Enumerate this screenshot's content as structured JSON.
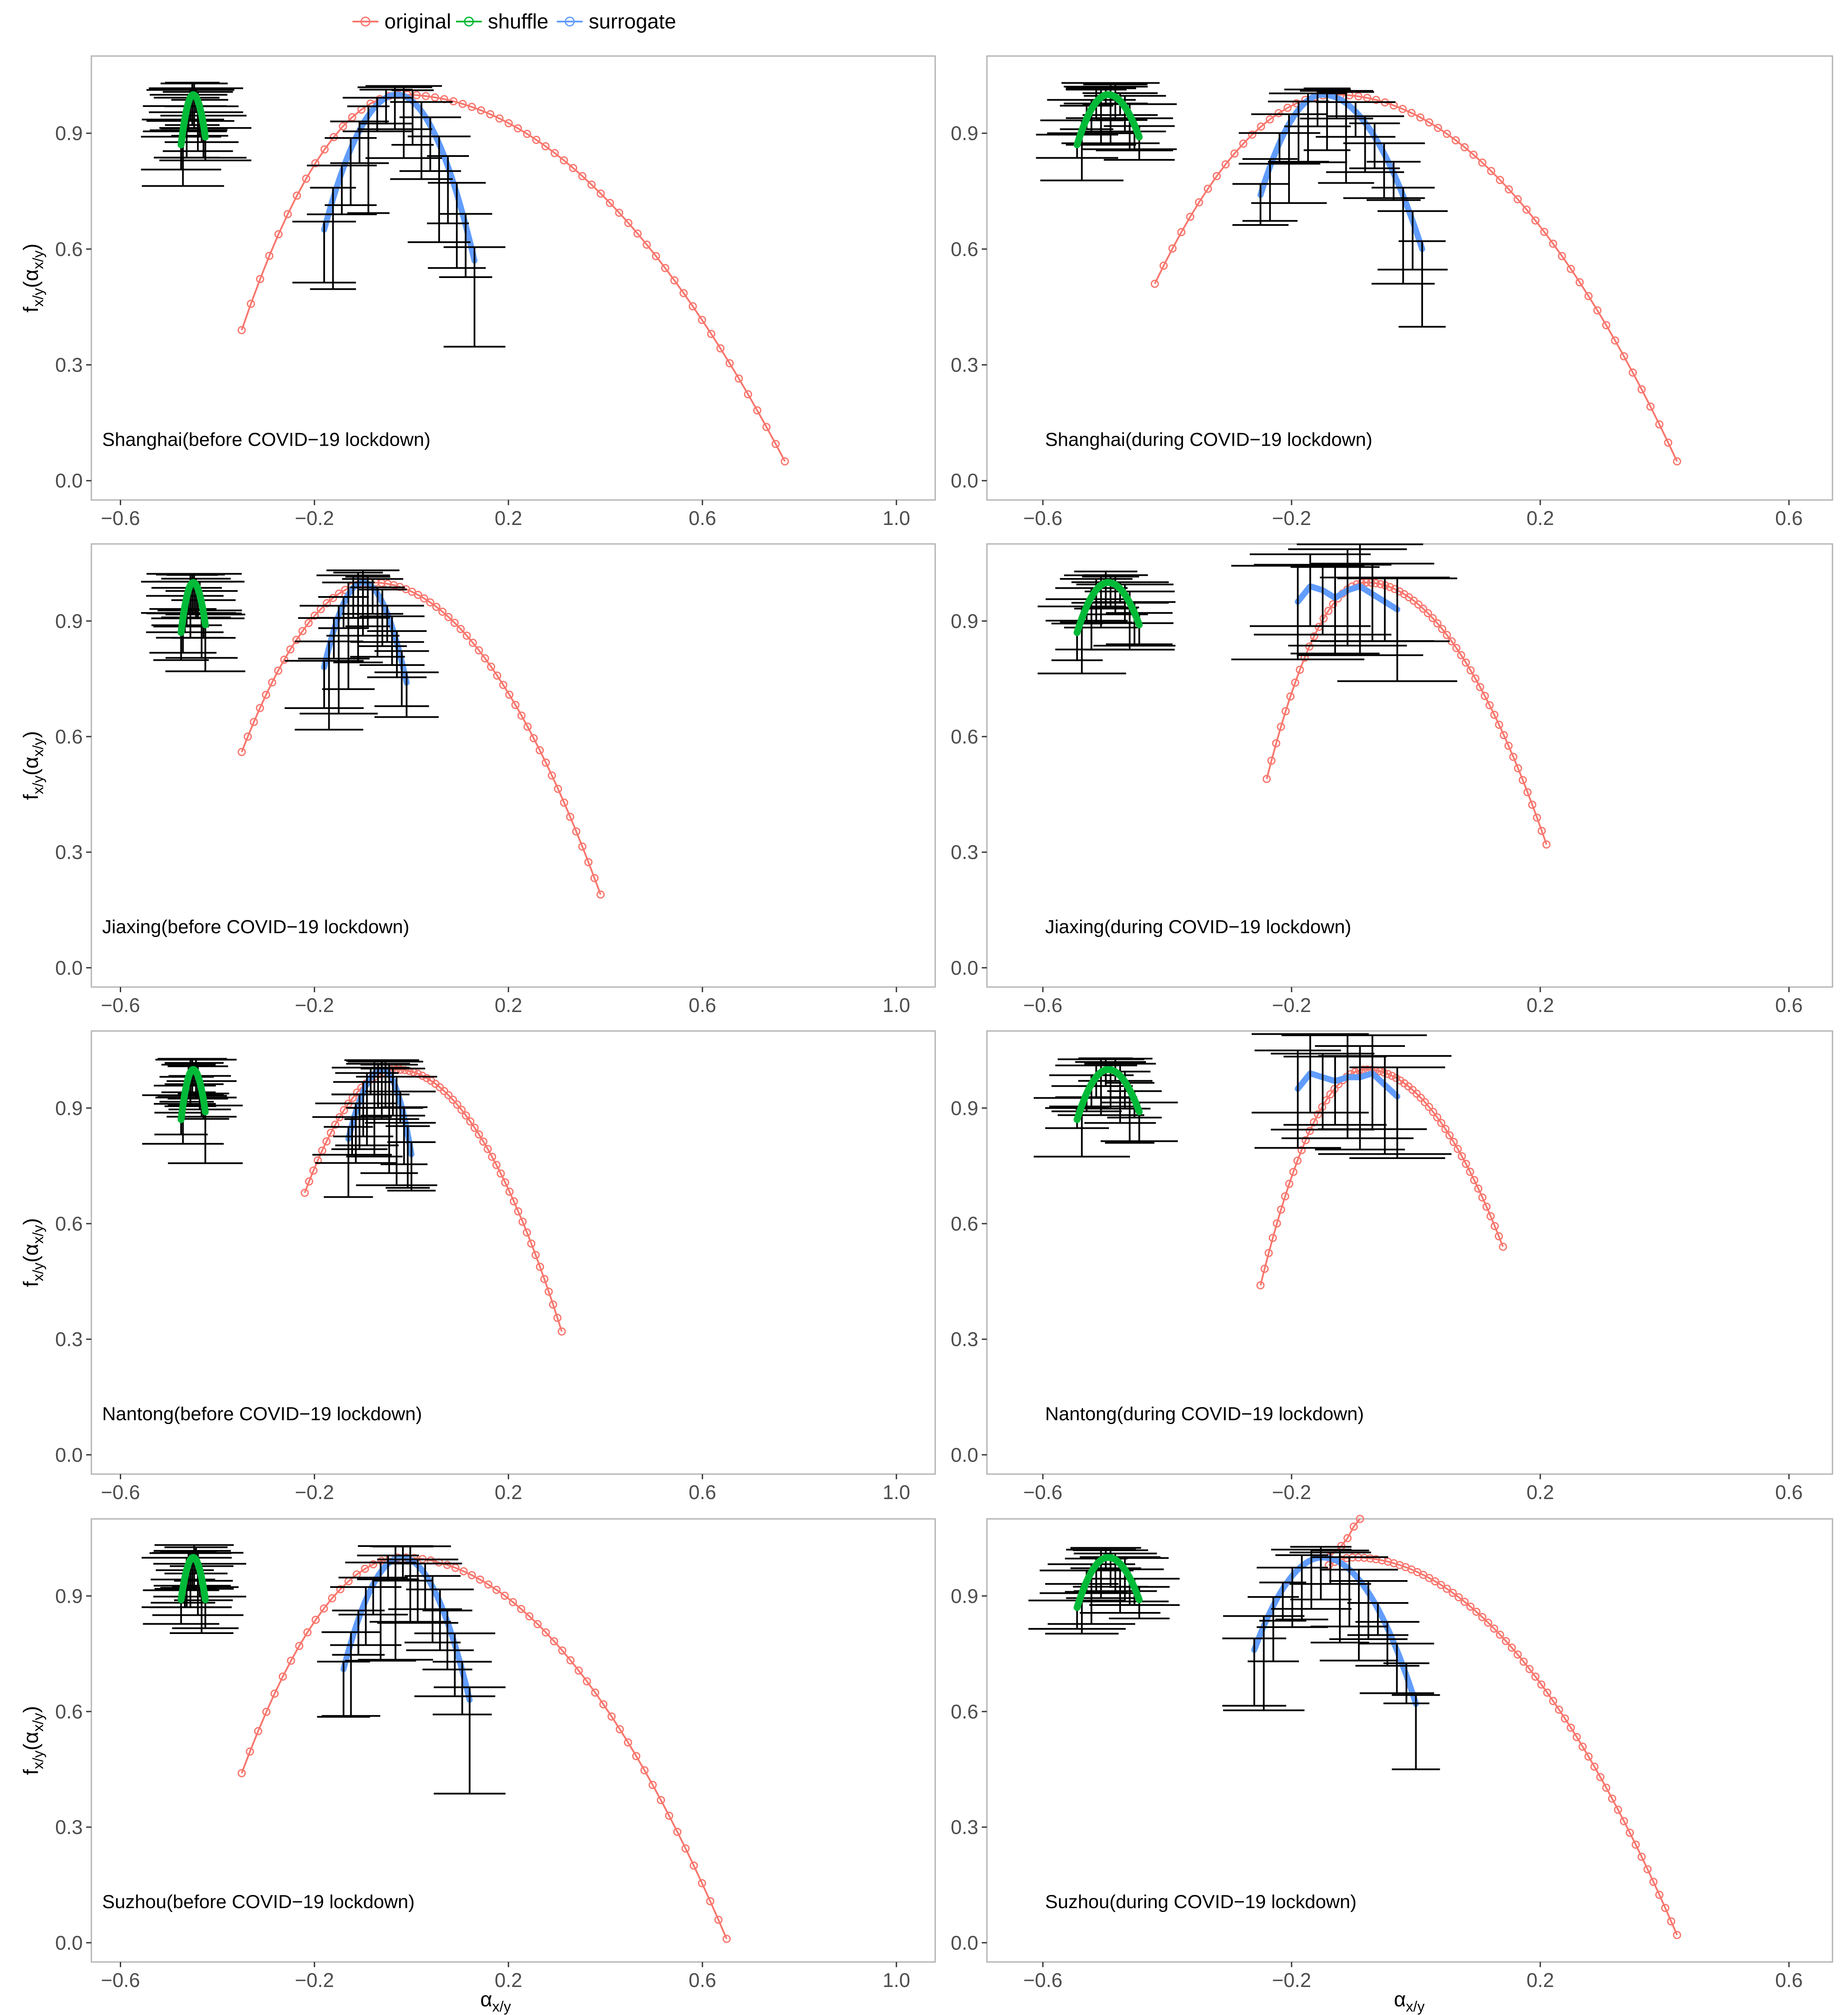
{
  "chart_data": {
    "type": "scatter",
    "title": "",
    "xlabel_symbol": "α",
    "xlabel_sub": "x/y",
    "ylabel_main": "f",
    "ylabel_sub": "x/y",
    "ylabel_paren": "(α",
    "ylabel_paren_sub": "x/y",
    "ylabel_close": ")",
    "legend": {
      "placement": "top-left",
      "entries": [
        {
          "name": "original",
          "color": "#F8766D"
        },
        {
          "name": "shuffle",
          "color": "#00BA38"
        },
        {
          "name": "surrogate",
          "color": "#619CFF"
        }
      ]
    },
    "colors": {
      "original": "#F8766D",
      "shuffle": "#00BA38",
      "surrogate": "#619CFF",
      "errorbar": "#000000",
      "panel_border": "#b3b3b3",
      "tick_text": "#4d4d4d"
    },
    "panels": [
      {
        "label": "Shanghai(before COVID−19 lockdown)",
        "xlim": [
          -0.66,
          1.08
        ],
        "ylim": [
          -0.05,
          1.1
        ],
        "xticks": [
          -0.6,
          -0.2,
          0.2,
          0.6,
          1.0
        ],
        "xtick_labels": [
          "−0.6",
          "−0.2",
          "0.2",
          "0.6",
          "1.0"
        ],
        "yticks": [
          0.0,
          0.3,
          0.6,
          0.9
        ],
        "ytick_labels": [
          "0.0",
          "0.3",
          "0.6",
          "0.9"
        ],
        "original": {
          "left": -0.35,
          "peak": -0.02,
          "right": 0.77,
          "fleft": 0.39,
          "fright": 0.05
        },
        "shuffle": {
          "left": -0.475,
          "peak": -0.45,
          "right": -0.425,
          "fleft": 0.87,
          "fright": 0.89
        },
        "surrogate": {
          "left": -0.18,
          "peak": -0.03,
          "right": 0.13,
          "fleft": 0.65,
          "fright": 0.57
        }
      },
      {
        "label": "Shanghai(during COVID−19 lockdown)",
        "xlim": [
          -0.69,
          0.67
        ],
        "ylim": [
          -0.05,
          1.1
        ],
        "xticks": [
          -0.6,
          -0.2,
          0.2,
          0.6
        ],
        "xtick_labels": [
          "−0.6",
          "−0.2",
          "0.2",
          "0.6"
        ],
        "yticks": [
          0.0,
          0.3,
          0.6,
          0.9
        ],
        "ytick_labels": [
          "0.0",
          "0.3",
          "0.6",
          "0.9"
        ],
        "original": {
          "left": -0.42,
          "peak": -0.13,
          "right": 0.42,
          "fleft": 0.51,
          "fright": 0.05
        },
        "shuffle": {
          "left": -0.545,
          "peak": -0.495,
          "right": -0.445,
          "fleft": 0.87,
          "fright": 0.89
        },
        "surrogate": {
          "left": -0.25,
          "peak": -0.15,
          "right": 0.01,
          "fleft": 0.74,
          "fright": 0.6
        }
      },
      {
        "label": "Jiaxing(before COVID−19 lockdown)",
        "xlim": [
          -0.66,
          1.08
        ],
        "ylim": [
          -0.05,
          1.1
        ],
        "xticks": [
          -0.6,
          -0.2,
          0.2,
          0.6,
          1.0
        ],
        "xtick_labels": [
          "−0.6",
          "−0.2",
          "0.2",
          "0.6",
          "1.0"
        ],
        "yticks": [
          0.0,
          0.3,
          0.6,
          0.9
        ],
        "ytick_labels": [
          "0.0",
          "0.3",
          "0.6",
          "0.9"
        ],
        "original": {
          "left": -0.35,
          "peak": -0.08,
          "right": 0.39,
          "fleft": 0.56,
          "fright": 0.19
        },
        "shuffle": {
          "left": -0.475,
          "peak": -0.45,
          "right": -0.425,
          "fleft": 0.87,
          "fright": 0.89
        },
        "surrogate": {
          "left": -0.18,
          "peak": -0.1,
          "right": -0.01,
          "fleft": 0.78,
          "fright": 0.74
        }
      },
      {
        "label": "Jiaxing(during COVID−19 lockdown)",
        "xlim": [
          -0.69,
          0.67
        ],
        "ylim": [
          -0.05,
          1.1
        ],
        "xticks": [
          -0.6,
          -0.2,
          0.2,
          0.6
        ],
        "xtick_labels": [
          "−0.6",
          "−0.2",
          "0.2",
          "0.6"
        ],
        "yticks": [
          0.0,
          0.3,
          0.6,
          0.9
        ],
        "ytick_labels": [
          "0.0",
          "0.3",
          "0.6",
          "0.9"
        ],
        "original": {
          "left": -0.24,
          "peak": -0.08,
          "right": 0.21,
          "fleft": 0.49,
          "fright": 0.32
        },
        "shuffle": {
          "left": -0.545,
          "peak": -0.495,
          "right": -0.445,
          "fleft": 0.87,
          "fright": 0.89
        },
        "surrogate_wavy": {
          "x": [
            -0.19,
            -0.17,
            -0.15,
            -0.13,
            -0.11,
            -0.09,
            -0.07,
            -0.05,
            -0.03
          ],
          "y": [
            0.95,
            0.99,
            0.98,
            0.96,
            0.98,
            0.99,
            0.97,
            0.95,
            0.93
          ]
        }
      },
      {
        "label": "Nantong(before COVID−19 lockdown)",
        "xlim": [
          -0.66,
          1.08
        ],
        "ylim": [
          -0.05,
          1.1
        ],
        "xticks": [
          -0.6,
          -0.2,
          0.2,
          0.6,
          1.0
        ],
        "xtick_labels": [
          "−0.6",
          "−0.2",
          "0.2",
          "0.6",
          "1.0"
        ],
        "yticks": [
          0.0,
          0.3,
          0.6,
          0.9
        ],
        "ytick_labels": [
          "0.0",
          "0.3",
          "0.6",
          "0.9"
        ],
        "original": {
          "left": -0.22,
          "peak": -0.03,
          "right": 0.31,
          "fleft": 0.68,
          "fright": 0.32
        },
        "shuffle": {
          "left": -0.475,
          "peak": -0.45,
          "right": -0.425,
          "fleft": 0.87,
          "fright": 0.89
        },
        "surrogate": {
          "left": -0.13,
          "peak": -0.06,
          "right": 0.0,
          "fleft": 0.82,
          "fright": 0.78
        }
      },
      {
        "label": "Nantong(during COVID−19 lockdown)",
        "xlim": [
          -0.69,
          0.67
        ],
        "ylim": [
          -0.05,
          1.1
        ],
        "xticks": [
          -0.6,
          -0.2,
          0.2,
          0.6
        ],
        "xtick_labels": [
          "−0.6",
          "−0.2",
          "0.2",
          "0.6"
        ],
        "yticks": [
          0.0,
          0.3,
          0.6,
          0.9
        ],
        "ytick_labels": [
          "0.0",
          "0.3",
          "0.6",
          "0.9"
        ],
        "original": {
          "left": -0.25,
          "peak": -0.08,
          "right": 0.14,
          "fleft": 0.44,
          "fright": 0.54
        },
        "shuffle": {
          "left": -0.545,
          "peak": -0.495,
          "right": -0.445,
          "fleft": 0.87,
          "fright": 0.89
        },
        "surrogate_wavy": {
          "x": [
            -0.19,
            -0.17,
            -0.15,
            -0.13,
            -0.11,
            -0.09,
            -0.07,
            -0.05,
            -0.03
          ],
          "y": [
            0.95,
            0.99,
            0.98,
            0.97,
            0.98,
            0.98,
            0.99,
            0.96,
            0.93
          ]
        }
      },
      {
        "label": "Suzhou(before COVID−19 lockdown)",
        "xlim": [
          -0.66,
          1.08
        ],
        "ylim": [
          -0.05,
          1.1
        ],
        "xticks": [
          -0.6,
          -0.2,
          0.2,
          0.6,
          1.0
        ],
        "xtick_labels": [
          "−0.6",
          "−0.2",
          "0.2",
          "0.6",
          "1.0"
        ],
        "yticks": [
          0.0,
          0.3,
          0.6,
          0.9
        ],
        "ytick_labels": [
          "0.0",
          "0.3",
          "0.6",
          "0.9"
        ],
        "original": {
          "left": -0.35,
          "peak": -0.02,
          "right": 0.65,
          "fleft": 0.44,
          "fright": 0.01
        },
        "shuffle": {
          "left": -0.475,
          "peak": -0.45,
          "right": -0.425,
          "fleft": 0.89,
          "fright": 0.89
        },
        "surrogate": {
          "left": -0.14,
          "peak": -0.02,
          "right": 0.12,
          "fleft": 0.71,
          "fright": 0.63
        }
      },
      {
        "label": "Suzhou(during COVID−19 lockdown)",
        "xlim": [
          -0.69,
          0.67
        ],
        "ylim": [
          -0.05,
          1.1
        ],
        "xticks": [
          -0.6,
          -0.2,
          0.2,
          0.6
        ],
        "xtick_labels": [
          "−0.6",
          "−0.2",
          "0.2",
          "0.6"
        ],
        "yticks": [
          0.0,
          0.3,
          0.6,
          0.9
        ],
        "ytick_labels": [
          "0.0",
          "0.3",
          "0.6",
          "0.9"
        ],
        "original": {
          "left": -0.14,
          "peak": -0.1,
          "right": 0.42,
          "fleft": 0.98,
          "fright": 0.02
        },
        "original_spike": {
          "x": [
            -0.14,
            -0.12,
            -0.11,
            -0.1,
            -0.09
          ],
          "y": [
            1.0,
            1.03,
            1.05,
            1.08,
            1.1
          ]
        },
        "shuffle": {
          "left": -0.545,
          "peak": -0.495,
          "right": -0.445,
          "fleft": 0.87,
          "fright": 0.89
        },
        "surrogate": {
          "left": -0.26,
          "peak": -0.15,
          "right": 0.0,
          "fleft": 0.76,
          "fright": 0.62
        }
      }
    ]
  }
}
